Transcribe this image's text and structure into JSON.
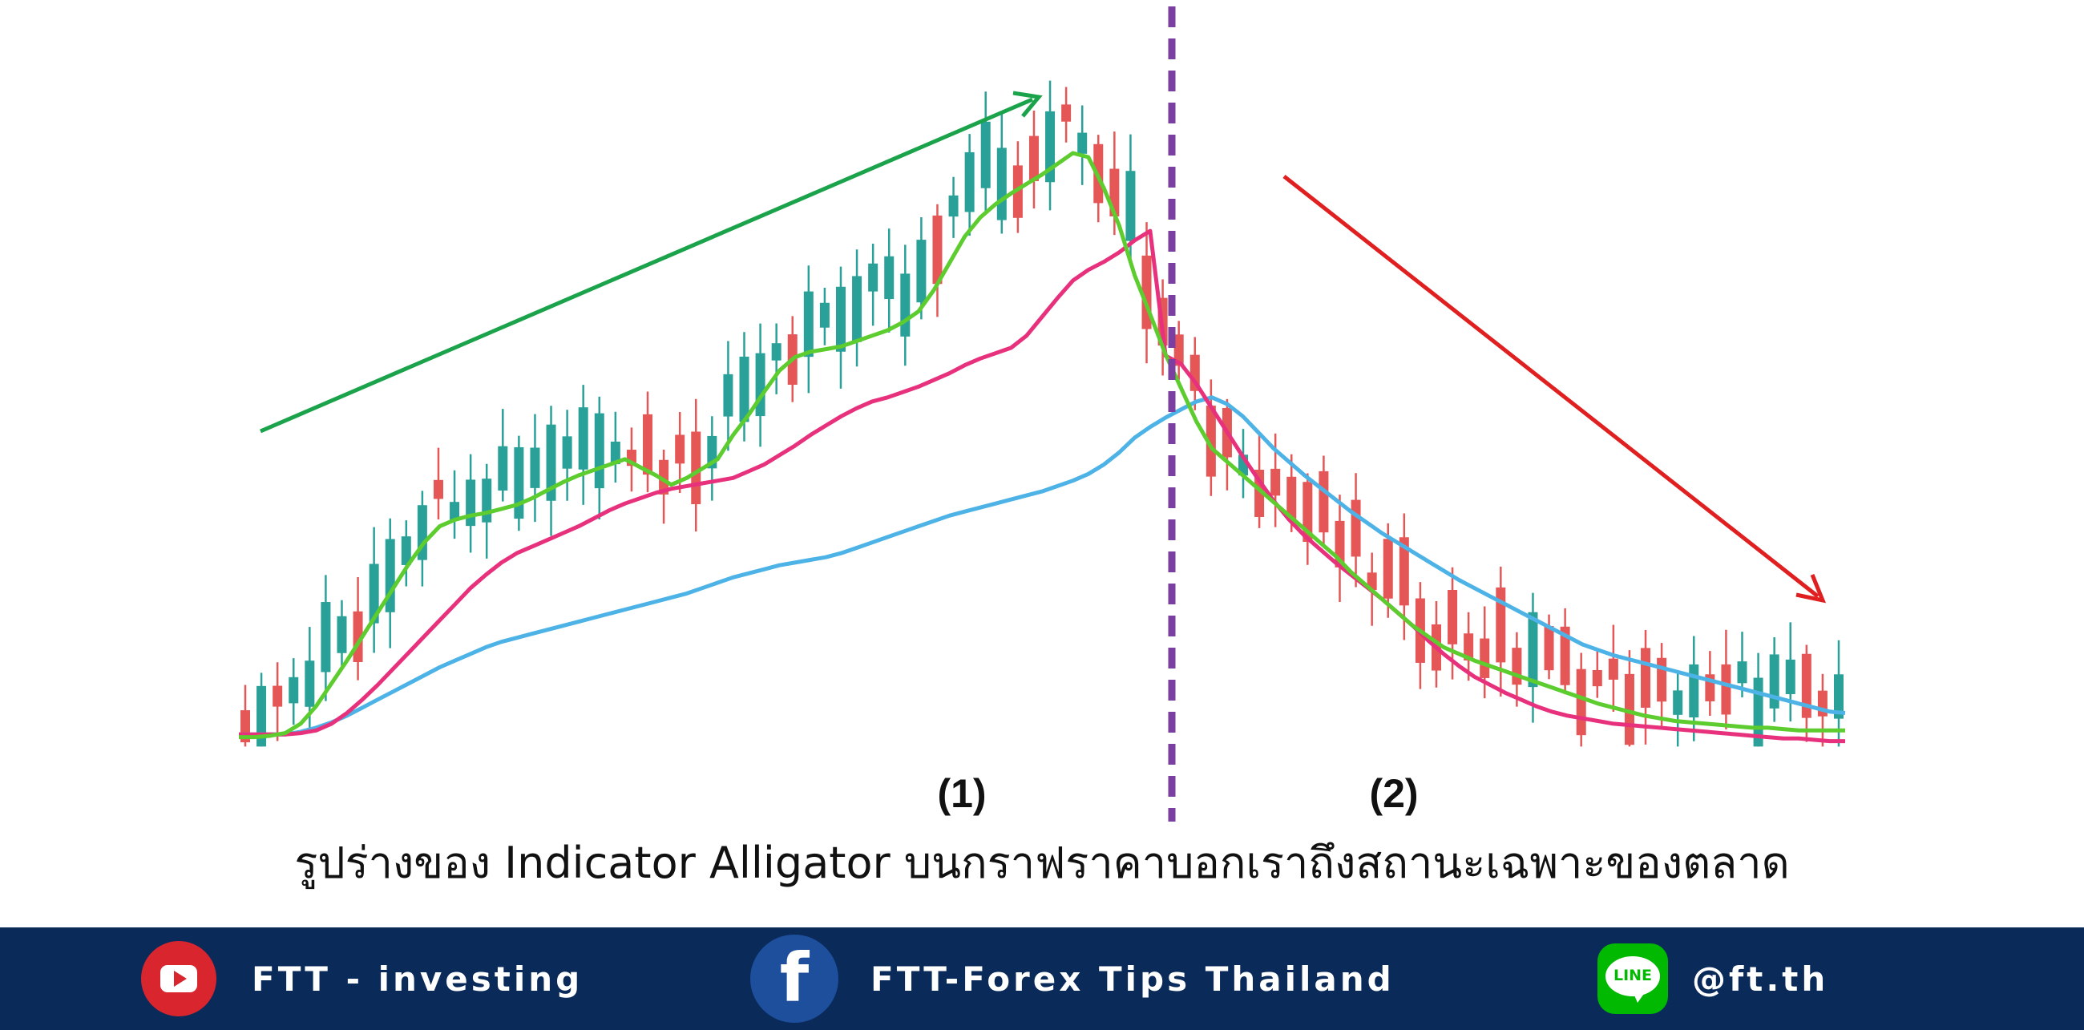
{
  "chart_data": {
    "type": "candlestick",
    "title": "",
    "xlabel": "",
    "ylabel": "",
    "indicator": "Alligator",
    "regions": [
      {
        "label": "(1)",
        "trend": "up",
        "arrow_color": "#1aa34a"
      },
      {
        "label": "(2)",
        "trend": "down",
        "arrow_color": "#e02020"
      }
    ],
    "divider_color": "#7a3fa0",
    "candle_colors": {
      "up": "#2aa198",
      "down": "#e45756"
    },
    "line_series": [
      {
        "color": "#4db3e6",
        "values": [
          7,
          7,
          7,
          7,
          9,
          12,
          16,
          21,
          27,
          33,
          39,
          45,
          51,
          57,
          62,
          67,
          72,
          76,
          79,
          82,
          85,
          88,
          91,
          94,
          97,
          100,
          103,
          106,
          109,
          112,
          116,
          120,
          124,
          127,
          130,
          133,
          135,
          137,
          139,
          142,
          146,
          150,
          154,
          158,
          162,
          166,
          170,
          173,
          176,
          179,
          182,
          185,
          188,
          192,
          196,
          201,
          208,
          217,
          228,
          236,
          243,
          249,
          255,
          258,
          253,
          244,
          232,
          220,
          210,
          200,
          191,
          182,
          173,
          165,
          157,
          150,
          143,
          136,
          129,
          122,
          116,
          110,
          104,
          98,
          92,
          86,
          80,
          74,
          70,
          66,
          63,
          60,
          57,
          54,
          51,
          48,
          45,
          42,
          39,
          36,
          33,
          30,
          27,
          24,
          23
        ]
      },
      {
        "color": "#e8317c",
        "values": [
          7,
          7,
          7,
          7,
          8,
          10,
          15,
          23,
          33,
          44,
          56,
          68,
          80,
          92,
          104,
          116,
          126,
          135,
          142,
          147,
          152,
          157,
          162,
          168,
          174,
          179,
          183,
          187,
          190,
          192,
          194,
          196,
          198,
          203,
          208,
          215,
          222,
          230,
          237,
          244,
          250,
          255,
          258,
          262,
          266,
          271,
          276,
          282,
          287,
          291,
          295,
          304,
          318,
          332,
          345,
          353,
          359,
          366,
          375,
          382,
          289,
          283,
          268,
          250,
          232,
          214,
          197,
          181,
          167,
          155,
          145,
          135,
          126,
          117,
          108,
          98,
          88,
          77,
          67,
          58,
          50,
          44,
          38,
          33,
          28,
          24,
          21,
          19,
          17,
          15,
          14,
          13,
          12,
          11,
          10,
          9,
          8,
          7,
          6,
          5,
          4,
          4,
          3,
          2,
          2
        ]
      },
      {
        "color": "#5ccc2e",
        "values": [
          5,
          5,
          6,
          8,
          15,
          28,
          45,
          62,
          80,
          98,
          116,
          134,
          150,
          162,
          167,
          170,
          172,
          175,
          178,
          183,
          189,
          195,
          200,
          204,
          208,
          212,
          206,
          200,
          193,
          198,
          205,
          212,
          230,
          245,
          262,
          278,
          288,
          292,
          294,
          296,
          300,
          304,
          308,
          314,
          322,
          338,
          358,
          378,
          392,
          402,
          410,
          417,
          424,
          432,
          440,
          437,
          414,
          386,
          349,
          320,
          290,
          265,
          240,
          220,
          210,
          200,
          190,
          180,
          170,
          160,
          150,
          140,
          128,
          118,
          108,
          98,
          88,
          80,
          72,
          67,
          62,
          58,
          54,
          50,
          46,
          42,
          38,
          34,
          30,
          27,
          24,
          21,
          19,
          17,
          16,
          15,
          14,
          13,
          12,
          12,
          11,
          10,
          10,
          10,
          10
        ]
      }
    ]
  },
  "labels": {
    "region1": "(1)",
    "region2": "(2)"
  },
  "caption": "รูปร่างของ Indicator Alligator บนกราฟราคาบอกเราถึงสถานะเฉพาะของตลาด",
  "footer": {
    "bg_color": "#0a2a5a",
    "youtube": {
      "icon": "youtube-icon",
      "label": "FTT - investing"
    },
    "facebook": {
      "icon": "facebook-icon",
      "glyph": "f",
      "label": "FTT-Forex Tips Thailand"
    },
    "line": {
      "icon": "line-icon",
      "glyph": "LINE",
      "label": "@ft.th"
    }
  }
}
